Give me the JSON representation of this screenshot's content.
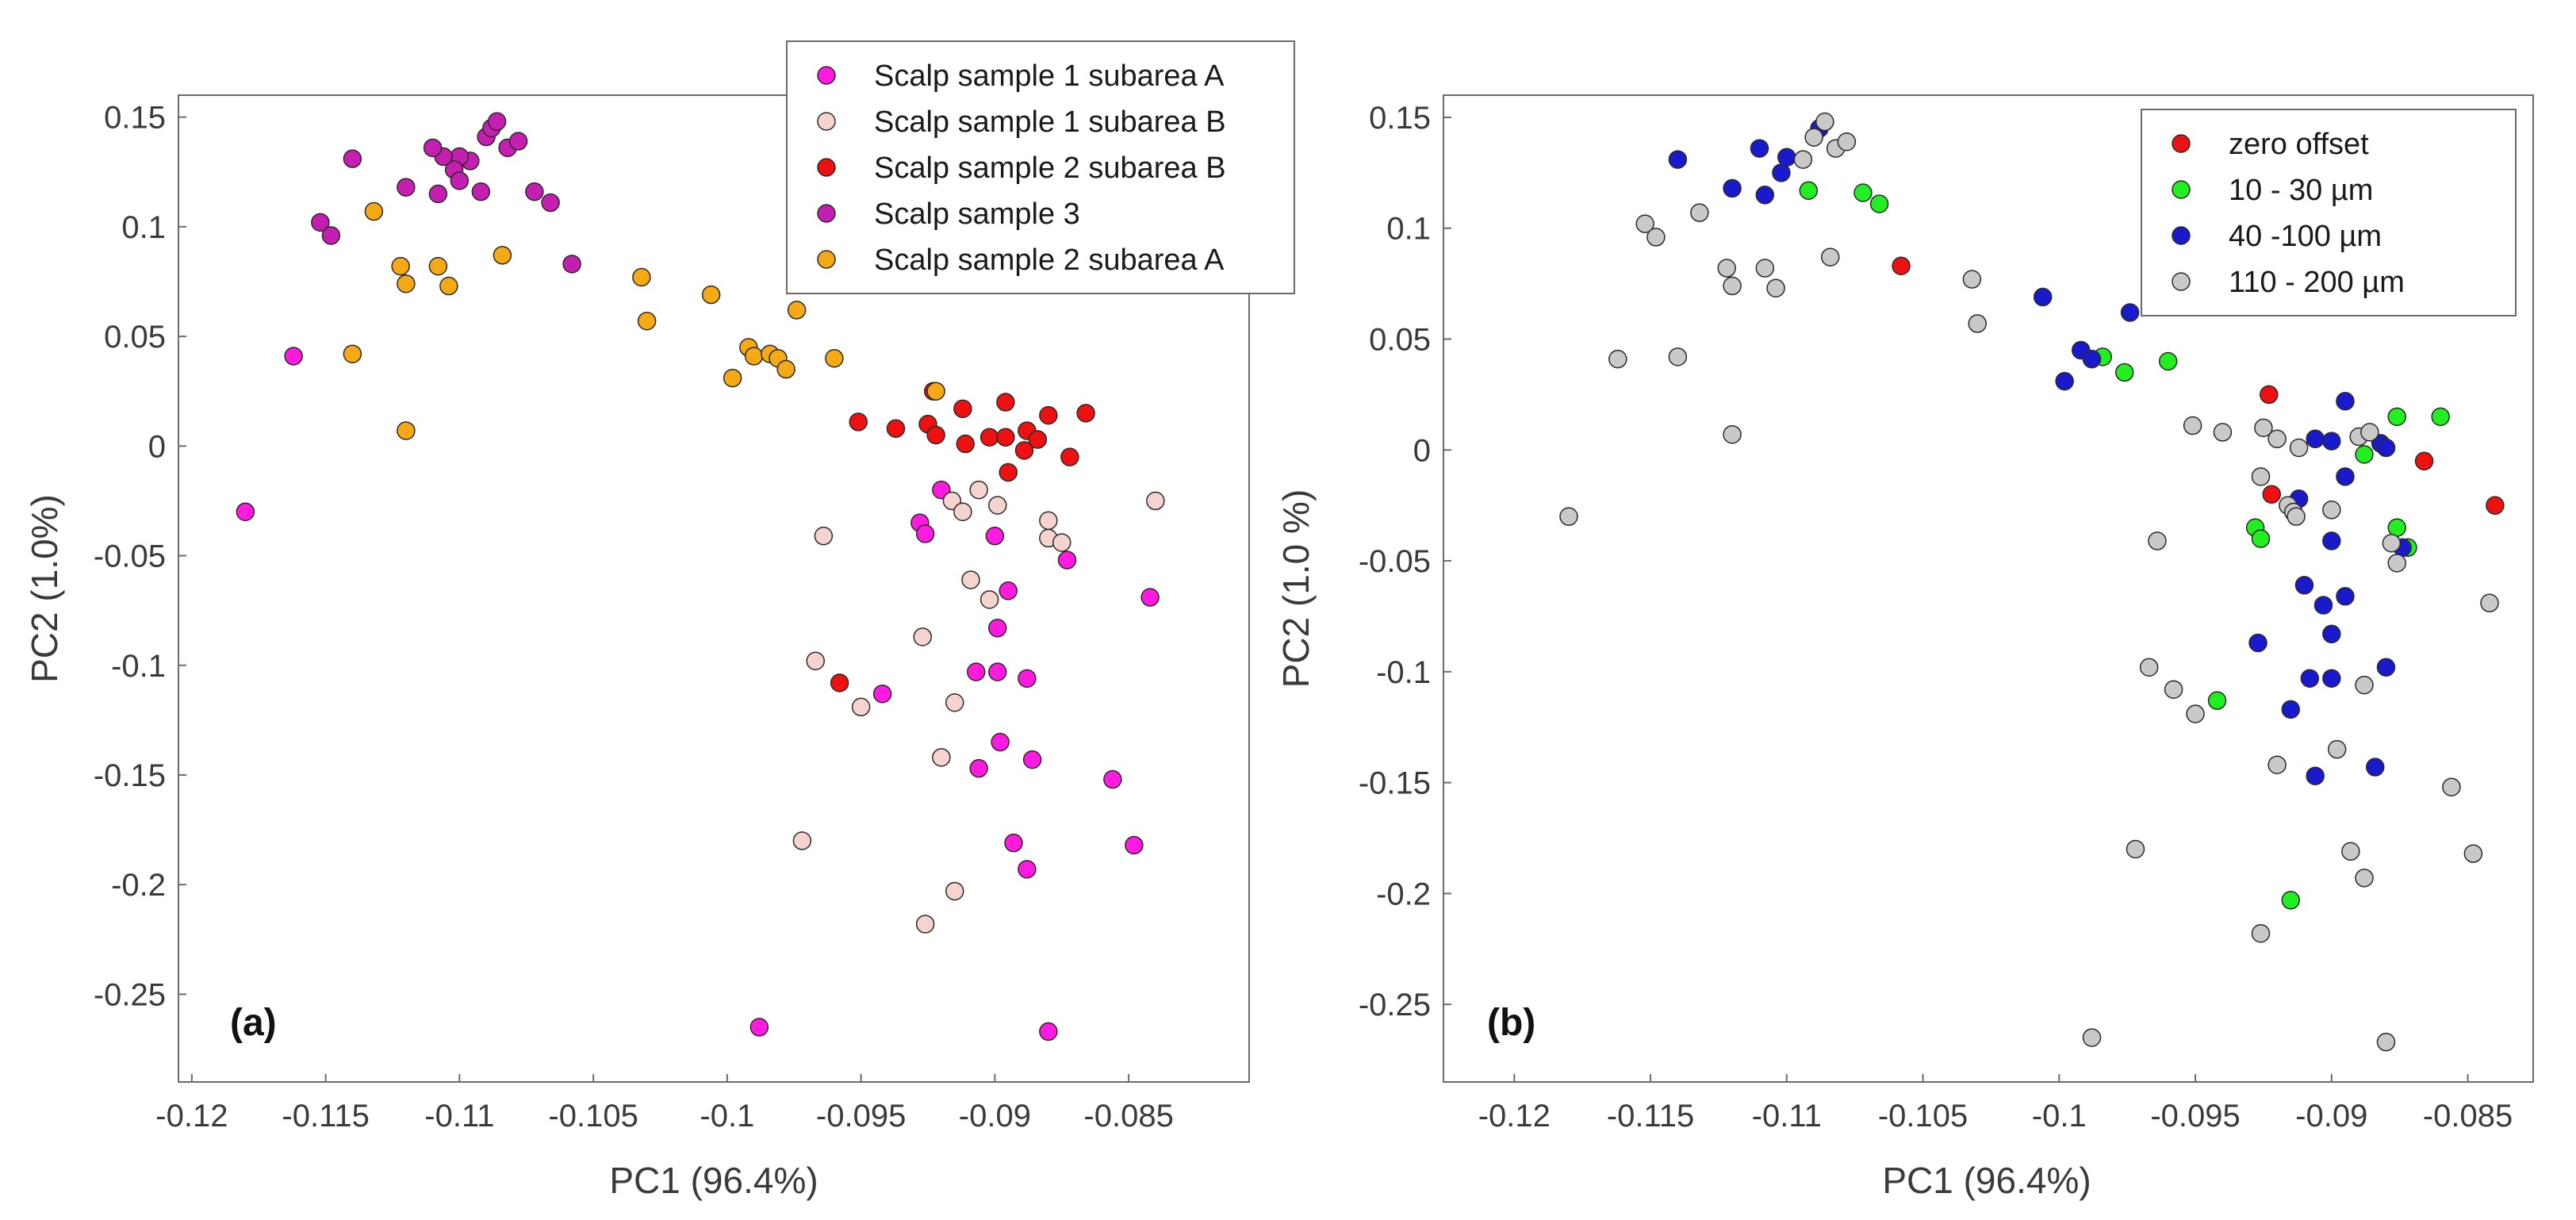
{
  "figure": {
    "panel_a_label": "(a)",
    "panel_b_label": "(b)"
  },
  "chart_data": [
    {
      "type": "scatter",
      "panel": "(a)",
      "xlabel": "PC1 (96.4%)",
      "ylabel": "PC2 (1.0%)",
      "xlim": [
        -0.1205,
        -0.0805
      ],
      "ylim": [
        -0.29,
        0.16
      ],
      "xticks": [
        -0.12,
        -0.115,
        -0.11,
        -0.105,
        -0.1,
        -0.095,
        -0.09,
        -0.085
      ],
      "xtick_labels": [
        "-0.12",
        "-0.115",
        "-0.11",
        "-0.105",
        "-0.1",
        "-0.095",
        "-0.09",
        "-0.085"
      ],
      "yticks": [
        0.15,
        0.1,
        0.05,
        0,
        -0.05,
        -0.1,
        -0.15,
        -0.2,
        -0.25
      ],
      "ytick_labels": [
        "0.15",
        "0.1",
        "0.05",
        "0",
        "-0.05",
        "-0.1",
        "-0.15",
        "-0.2",
        "-0.25"
      ],
      "legend_position": "top-right",
      "series": [
        {
          "name": "Scalp sample 1 subarea A",
          "color": "#ff1adf",
          "points": [
            [
              -0.118,
              -0.03
            ],
            [
              -0.1162,
              0.041
            ],
            [
              -0.092,
              -0.02
            ],
            [
              -0.0928,
              -0.035
            ],
            [
              -0.0926,
              -0.04
            ],
            [
              -0.09,
              -0.041
            ],
            [
              -0.0873,
              -0.052
            ],
            [
              -0.0895,
              -0.066
            ],
            [
              -0.0899,
              -0.083
            ],
            [
              -0.0907,
              -0.103
            ],
            [
              -0.0899,
              -0.103
            ],
            [
              -0.0888,
              -0.106
            ],
            [
              -0.0942,
              -0.113
            ],
            [
              -0.0898,
              -0.135
            ],
            [
              -0.0906,
              -0.147
            ],
            [
              -0.0886,
              -0.143
            ],
            [
              -0.0856,
              -0.152
            ],
            [
              -0.0842,
              -0.069
            ],
            [
              -0.0893,
              -0.181
            ],
            [
              -0.0848,
              -0.182
            ],
            [
              -0.0888,
              -0.193
            ],
            [
              -0.0988,
              -0.265
            ],
            [
              -0.088,
              -0.267
            ]
          ]
        },
        {
          "name": "Scalp sample 1 subarea B",
          "color": "#f5d3cf",
          "points": [
            [
              -0.0964,
              -0.041
            ],
            [
              -0.0916,
              -0.025
            ],
            [
              -0.0912,
              -0.03
            ],
            [
              -0.0906,
              -0.02
            ],
            [
              -0.0899,
              -0.027
            ],
            [
              -0.088,
              -0.034
            ],
            [
              -0.088,
              -0.042
            ],
            [
              -0.0875,
              -0.044
            ],
            [
              -0.084,
              -0.025
            ],
            [
              -0.0909,
              -0.061
            ],
            [
              -0.0902,
              -0.07
            ],
            [
              -0.0927,
              -0.087
            ],
            [
              -0.0967,
              -0.098
            ],
            [
              -0.095,
              -0.119
            ],
            [
              -0.0915,
              -0.117
            ],
            [
              -0.092,
              -0.142
            ],
            [
              -0.0972,
              -0.18
            ],
            [
              -0.0915,
              -0.203
            ],
            [
              -0.0926,
              -0.218
            ]
          ]
        },
        {
          "name": "Scalp sample 2 subarea B",
          "color": "#ee1111",
          "points": [
            [
              -0.0951,
              0.011
            ],
            [
              -0.0937,
              0.008
            ],
            [
              -0.0925,
              0.01
            ],
            [
              -0.0922,
              0.005
            ],
            [
              -0.0911,
              0.001
            ],
            [
              -0.0923,
              0.025
            ],
            [
              -0.0912,
              0.017
            ],
            [
              -0.0902,
              0.004
            ],
            [
              -0.0896,
              0.004
            ],
            [
              -0.0896,
              0.02
            ],
            [
              -0.0888,
              0.007
            ],
            [
              -0.0884,
              0.003
            ],
            [
              -0.0889,
              -0.002
            ],
            [
              -0.0895,
              -0.012
            ],
            [
              -0.088,
              0.014
            ],
            [
              -0.0866,
              0.015
            ],
            [
              -0.0872,
              -0.005
            ],
            [
              -0.0958,
              -0.108
            ]
          ]
        },
        {
          "name": "Scalp sample 3",
          "color": "#c41fb0",
          "points": [
            [
              -0.109,
              0.141
            ],
            [
              -0.1088,
              0.145
            ],
            [
              -0.1086,
              0.148
            ],
            [
              -0.1082,
              0.136
            ],
            [
              -0.1078,
              0.139
            ],
            [
              -0.1096,
              0.13
            ],
            [
              -0.11,
              0.132
            ],
            [
              -0.1102,
              0.126
            ],
            [
              -0.1106,
              0.132
            ],
            [
              -0.11,
              0.121
            ],
            [
              -0.1092,
              0.116
            ],
            [
              -0.111,
              0.136
            ],
            [
              -0.112,
              0.118
            ],
            [
              -0.1108,
              0.115
            ],
            [
              -0.114,
              0.131
            ],
            [
              -0.1152,
              0.102
            ],
            [
              -0.1148,
              0.096
            ],
            [
              -0.1072,
              0.116
            ],
            [
              -0.1066,
              0.111
            ],
            [
              -0.1058,
              0.083
            ]
          ]
        },
        {
          "name": "Scalp sample 2 subarea A",
          "color": "#f5a915",
          "points": [
            [
              -0.1132,
              0.107
            ],
            [
              -0.1122,
              0.082
            ],
            [
              -0.112,
              0.074
            ],
            [
              -0.1108,
              0.082
            ],
            [
              -0.1104,
              0.073
            ],
            [
              -0.1084,
              0.087
            ],
            [
              -0.114,
              0.042
            ],
            [
              -0.112,
              0.007
            ],
            [
              -0.1032,
              0.077
            ],
            [
              -0.103,
              0.057
            ],
            [
              -0.1006,
              0.069
            ],
            [
              -0.0998,
              0.031
            ],
            [
              -0.0992,
              0.045
            ],
            [
              -0.099,
              0.041
            ],
            [
              -0.0984,
              0.042
            ],
            [
              -0.0981,
              0.04
            ],
            [
              -0.0978,
              0.035
            ],
            [
              -0.0974,
              0.062
            ],
            [
              -0.096,
              0.04
            ],
            [
              -0.0922,
              0.025
            ]
          ]
        }
      ]
    },
    {
      "type": "scatter",
      "panel": "(b)",
      "xlabel": "PC1 (96.4%)",
      "ylabel": "PC2 (1.0 %)",
      "xlim": [
        -0.1226,
        -0.0826
      ],
      "ylim": [
        -0.285,
        0.16
      ],
      "xticks": [
        -0.12,
        -0.115,
        -0.11,
        -0.105,
        -0.1,
        -0.095,
        -0.09,
        -0.085
      ],
      "xtick_labels": [
        "-0.12",
        "-0.115",
        "-0.11",
        "-0.105",
        "-0.1",
        "-0.095",
        "-0.09",
        "-0.085"
      ],
      "yticks": [
        0.15,
        0.1,
        0.05,
        0,
        -0.05,
        -0.1,
        -0.15,
        -0.2,
        -0.25
      ],
      "ytick_labels": [
        "0.15",
        "0.1",
        "0.05",
        "0",
        "-0.05",
        "-0.1",
        "-0.15",
        "-0.2",
        "-0.25"
      ],
      "legend_position": "top-right",
      "series": [
        {
          "name": "zero offset",
          "color": "#ee1111",
          "points": [
            [
              -0.1058,
              0.083
            ],
            [
              -0.0923,
              0.025
            ],
            [
              -0.0922,
              -0.02
            ],
            [
              -0.0866,
              -0.005
            ],
            [
              -0.084,
              -0.025
            ]
          ]
        },
        {
          "name": "10 - 30 µm",
          "color": "#22ee22",
          "points": [
            [
              -0.1092,
              0.117
            ],
            [
              -0.1072,
              0.116
            ],
            [
              -0.1066,
              0.111
            ],
            [
              -0.0984,
              0.042
            ],
            [
              -0.0976,
              0.035
            ],
            [
              -0.096,
              0.04
            ],
            [
              -0.0928,
              -0.035
            ],
            [
              -0.0926,
              -0.04
            ],
            [
              -0.0888,
              -0.002
            ],
            [
              -0.0876,
              0.015
            ],
            [
              -0.086,
              0.015
            ],
            [
              -0.0876,
              -0.035
            ],
            [
              -0.0872,
              -0.044
            ],
            [
              -0.0942,
              -0.113
            ],
            [
              -0.0915,
              -0.203
            ]
          ]
        },
        {
          "name": "40 -100 µm",
          "color": "#1a1acd",
          "points": [
            [
              -0.114,
              0.131
            ],
            [
              -0.112,
              0.118
            ],
            [
              -0.111,
              0.136
            ],
            [
              -0.1108,
              0.115
            ],
            [
              -0.1102,
              0.125
            ],
            [
              -0.11,
              0.132
            ],
            [
              -0.1088,
              0.145
            ],
            [
              -0.1006,
              0.069
            ],
            [
              -0.0998,
              0.031
            ],
            [
              -0.0992,
              0.045
            ],
            [
              -0.0988,
              0.041
            ],
            [
              -0.0974,
              0.062
            ],
            [
              -0.0895,
              0.022
            ],
            [
              -0.0906,
              0.005
            ],
            [
              -0.09,
              0.004
            ],
            [
              -0.0882,
              0.003
            ],
            [
              -0.088,
              0.001
            ],
            [
              -0.0895,
              -0.012
            ],
            [
              -0.0912,
              -0.022
            ],
            [
              -0.09,
              -0.041
            ],
            [
              -0.091,
              -0.061
            ],
            [
              -0.0903,
              -0.07
            ],
            [
              -0.0895,
              -0.066
            ],
            [
              -0.09,
              -0.083
            ],
            [
              -0.0927,
              -0.087
            ],
            [
              -0.0908,
              -0.103
            ],
            [
              -0.09,
              -0.103
            ],
            [
              -0.088,
              -0.098
            ],
            [
              -0.0915,
              -0.117
            ],
            [
              -0.0906,
              -0.147
            ],
            [
              -0.0884,
              -0.143
            ],
            [
              -0.0874,
              -0.044
            ]
          ]
        },
        {
          "name": "110 - 200 µm",
          "color": "#c9c9c9",
          "points": [
            [
              -0.118,
              -0.03
            ],
            [
              -0.1162,
              0.041
            ],
            [
              -0.114,
              0.042
            ],
            [
              -0.1152,
              0.102
            ],
            [
              -0.1148,
              0.096
            ],
            [
              -0.1132,
              0.107
            ],
            [
              -0.1122,
              0.082
            ],
            [
              -0.112,
              0.074
            ],
            [
              -0.112,
              0.007
            ],
            [
              -0.1108,
              0.082
            ],
            [
              -0.1104,
              0.073
            ],
            [
              -0.1094,
              0.131
            ],
            [
              -0.109,
              0.141
            ],
            [
              -0.1086,
              0.148
            ],
            [
              -0.1082,
              0.136
            ],
            [
              -0.1078,
              0.139
            ],
            [
              -0.1084,
              0.087
            ],
            [
              -0.1032,
              0.077
            ],
            [
              -0.103,
              0.057
            ],
            [
              -0.0951,
              0.011
            ],
            [
              -0.094,
              0.008
            ],
            [
              -0.0925,
              0.01
            ],
            [
              -0.092,
              0.005
            ],
            [
              -0.0912,
              0.001
            ],
            [
              -0.0926,
              -0.012
            ],
            [
              -0.0916,
              -0.025
            ],
            [
              -0.0914,
              -0.028
            ],
            [
              -0.0913,
              -0.03
            ],
            [
              -0.09,
              -0.027
            ],
            [
              -0.089,
              0.006
            ],
            [
              -0.0886,
              0.008
            ],
            [
              -0.0878,
              -0.042
            ],
            [
              -0.0876,
              -0.051
            ],
            [
              -0.0964,
              -0.041
            ],
            [
              -0.0967,
              -0.098
            ],
            [
              -0.0958,
              -0.108
            ],
            [
              -0.095,
              -0.119
            ],
            [
              -0.092,
              -0.142
            ],
            [
              -0.0898,
              -0.135
            ],
            [
              -0.0888,
              -0.106
            ],
            [
              -0.0856,
              -0.152
            ],
            [
              -0.0848,
              -0.182
            ],
            [
              -0.0842,
              -0.069
            ],
            [
              -0.0972,
              -0.18
            ],
            [
              -0.0893,
              -0.181
            ],
            [
              -0.0888,
              -0.193
            ],
            [
              -0.0926,
              -0.218
            ],
            [
              -0.0988,
              -0.265
            ],
            [
              -0.088,
              -0.267
            ]
          ]
        }
      ]
    }
  ]
}
